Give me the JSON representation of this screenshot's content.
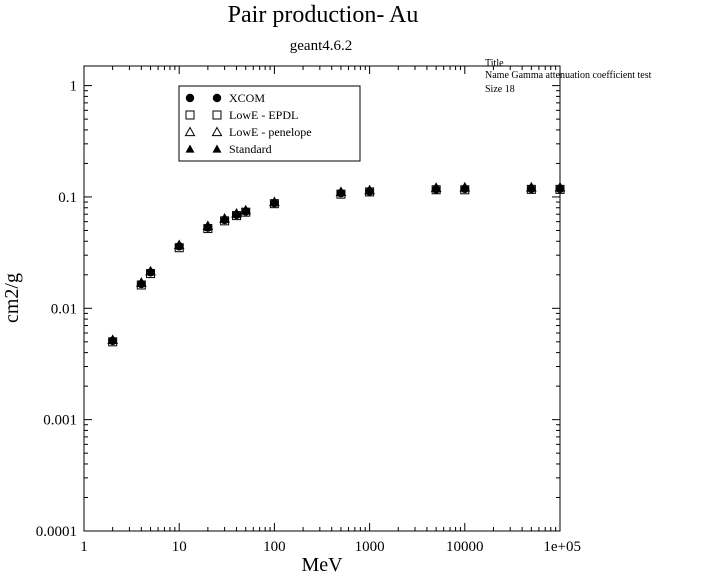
{
  "chart_data": {
    "type": "scatter",
    "title": "Pair production- Au",
    "subtitle": "geant4.6.2",
    "xlabel": "MeV",
    "ylabel": "cm2/g",
    "xscale": "log",
    "yscale": "log",
    "xlim": [
      1,
      100000
    ],
    "ylim": [
      0.0001,
      1.5
    ],
    "x_ticks": [
      1,
      10,
      100,
      1000,
      10000,
      100000
    ],
    "x_tick_labels": [
      "1",
      "10",
      "100",
      "1000",
      "10000",
      "1e+05"
    ],
    "y_ticks": [
      0.0001,
      0.001,
      0.01,
      0.1,
      1
    ],
    "y_tick_labels": [
      "0.0001",
      "0.001",
      "0.01",
      "0.1",
      "1"
    ],
    "grid": false,
    "legend_position": "top-left",
    "stats_box": {
      "title": "Title",
      "name": "Name  Gamma attenuation coefficient test",
      "size": "Size  18"
    },
    "series": [
      {
        "name": "XCOM",
        "marker": "filled-circle",
        "x": [
          2,
          4,
          5,
          10,
          20,
          30,
          40,
          50,
          100,
          500,
          1000,
          5000,
          10000,
          50000,
          100000
        ],
        "y": [
          0.0051,
          0.0165,
          0.021,
          0.036,
          0.053,
          0.062,
          0.069,
          0.074,
          0.088,
          0.108,
          0.112,
          0.117,
          0.118,
          0.118,
          0.118
        ]
      },
      {
        "name": "LowE - EPDL",
        "marker": "open-square",
        "x": [
          2,
          4,
          5,
          10,
          20,
          30,
          40,
          50,
          100,
          500,
          1000,
          5000,
          10000,
          50000,
          100000
        ],
        "y": [
          0.005,
          0.0162,
          0.0205,
          0.035,
          0.052,
          0.061,
          0.068,
          0.073,
          0.087,
          0.106,
          0.111,
          0.116,
          0.116,
          0.117,
          0.117
        ]
      },
      {
        "name": "LowE - penelope",
        "marker": "open-triangle",
        "x": [
          2,
          4,
          5,
          10,
          20,
          30,
          40,
          50,
          100,
          500,
          1000,
          5000,
          10000,
          50000,
          100000
        ],
        "y": [
          0.0052,
          0.017,
          0.0215,
          0.037,
          0.055,
          0.064,
          0.071,
          0.076,
          0.09,
          0.111,
          0.115,
          0.121,
          0.122,
          0.122,
          0.122
        ]
      },
      {
        "name": "Standard",
        "marker": "filled-triangle",
        "x": [
          2,
          4,
          5,
          10,
          20,
          30,
          40,
          50,
          100,
          500,
          1000,
          5000,
          10000,
          50000,
          100000
        ],
        "y": [
          0.0052,
          0.0168,
          0.0213,
          0.0365,
          0.054,
          0.063,
          0.07,
          0.075,
          0.089,
          0.11,
          0.114,
          0.12,
          0.121,
          0.121,
          0.121
        ]
      }
    ]
  }
}
